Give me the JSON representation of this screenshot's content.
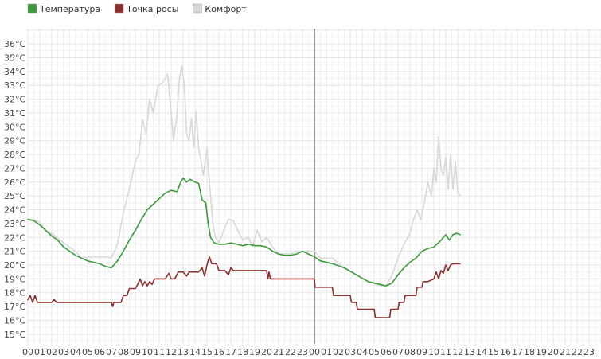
{
  "chart_data": {
    "type": "line",
    "legend": {
      "placement": "top-left",
      "items": [
        {
          "label": "Температура",
          "color": "#3a9a3a"
        },
        {
          "label": "Точка росы",
          "color": "#8b2e2e"
        },
        {
          "label": "Комфорт",
          "color": "#d8d8d8"
        }
      ]
    },
    "y_unit": "°C",
    "ylim": [
      14.3,
      37.1
    ],
    "y_ticks": [
      "15°C",
      "16°C",
      "17°C",
      "18°C",
      "19°C",
      "20°C",
      "21°C",
      "22°C",
      "23°C",
      "24°C",
      "25°C",
      "26°C",
      "27°C",
      "28°C",
      "29°C",
      "30°C",
      "31°C",
      "32°C",
      "33°C",
      "34°C",
      "35°C",
      "36°C"
    ],
    "y_tick_values": [
      15,
      16,
      17,
      18,
      19,
      20,
      21,
      22,
      23,
      24,
      25,
      26,
      27,
      28,
      29,
      30,
      31,
      32,
      33,
      34,
      35,
      36
    ],
    "x_unit": "hours",
    "xlim": [
      0,
      48.0
    ],
    "x_ticks": [
      "00",
      "01",
      "02",
      "03",
      "04",
      "05",
      "06",
      "07",
      "08",
      "09",
      "10",
      "11",
      "12",
      "13",
      "14",
      "15",
      "16",
      "17",
      "18",
      "19",
      "20",
      "21",
      "22",
      "23",
      "00",
      "01",
      "02",
      "03",
      "04",
      "05",
      "06",
      "07",
      "08",
      "09",
      "10",
      "11",
      "12",
      "13",
      "14",
      "15",
      "16",
      "17",
      "18",
      "19",
      "20",
      "21",
      "22",
      "23"
    ],
    "day_divider_hour": 24,
    "grid": true,
    "series": [
      {
        "name": "Комфорт",
        "color": "#d8d8d8",
        "points": [
          [
            0,
            23.3
          ],
          [
            0.5,
            23.3
          ],
          [
            1,
            23.1
          ],
          [
            1.5,
            22.5
          ],
          [
            2,
            22.3
          ],
          [
            3,
            21.6
          ],
          [
            4,
            21.0
          ],
          [
            4.5,
            20.5
          ],
          [
            5,
            20.6
          ],
          [
            6,
            20.6
          ],
          [
            6.7,
            20.6
          ],
          [
            7,
            20.5
          ],
          [
            7.5,
            21.5
          ],
          [
            8,
            23.8
          ],
          [
            8.5,
            25.5
          ],
          [
            9,
            27.5
          ],
          [
            9.3,
            28.0
          ],
          [
            9.6,
            30.5
          ],
          [
            9.9,
            29.5
          ],
          [
            10.2,
            32.0
          ],
          [
            10.5,
            31.0
          ],
          [
            10.9,
            33.0
          ],
          [
            11.3,
            33.2
          ],
          [
            11.7,
            33.8
          ],
          [
            12.0,
            31.0
          ],
          [
            12.2,
            29.0
          ],
          [
            12.5,
            31.0
          ],
          [
            12.7,
            33.5
          ],
          [
            12.9,
            34.4
          ],
          [
            13.1,
            33.0
          ],
          [
            13.3,
            29.5
          ],
          [
            13.5,
            29.0
          ],
          [
            13.7,
            30.6
          ],
          [
            13.9,
            28.5
          ],
          [
            14.1,
            31.1
          ],
          [
            14.3,
            28.5
          ],
          [
            14.5,
            27.5
          ],
          [
            14.7,
            26.5
          ],
          [
            15.0,
            28.5
          ],
          [
            15.2,
            26.0
          ],
          [
            15.5,
            23.0
          ],
          [
            15.7,
            22.0
          ],
          [
            16.0,
            21.6
          ],
          [
            16.4,
            22.5
          ],
          [
            16.8,
            23.3
          ],
          [
            17.2,
            23.2
          ],
          [
            17.6,
            22.5
          ],
          [
            18.0,
            21.8
          ],
          [
            18.5,
            22.0
          ],
          [
            18.8,
            21.3
          ],
          [
            19.2,
            22.5
          ],
          [
            19.6,
            21.7
          ],
          [
            20.0,
            22.0
          ],
          [
            20.5,
            21.3
          ],
          [
            21.0,
            20.8
          ],
          [
            22.0,
            20.8
          ],
          [
            22.5,
            21.0
          ],
          [
            23.0,
            21.0
          ],
          [
            24.0,
            21.0
          ],
          [
            24.5,
            20.5
          ],
          [
            25.5,
            20.5
          ],
          [
            26.5,
            19.8
          ],
          [
            27.5,
            19.3
          ],
          [
            28.5,
            18.8
          ],
          [
            29.5,
            18.5
          ],
          [
            30.0,
            18.5
          ],
          [
            30.5,
            19.3
          ],
          [
            31.0,
            20.5
          ],
          [
            31.5,
            21.5
          ],
          [
            32.0,
            22.3
          ],
          [
            32.3,
            23.3
          ],
          [
            32.6,
            24.0
          ],
          [
            32.9,
            23.3
          ],
          [
            33.2,
            24.5
          ],
          [
            33.5,
            26.0
          ],
          [
            33.8,
            25.0
          ],
          [
            34.0,
            27.0
          ],
          [
            34.2,
            26.0
          ],
          [
            34.4,
            29.3
          ],
          [
            34.6,
            27.0
          ],
          [
            34.8,
            26.5
          ],
          [
            35.0,
            27.8
          ],
          [
            35.2,
            25.5
          ],
          [
            35.4,
            28.0
          ],
          [
            35.6,
            25.5
          ],
          [
            35.8,
            27.5
          ],
          [
            36.0,
            25.2
          ],
          [
            36.2,
            25.0
          ]
        ]
      },
      {
        "name": "Температура",
        "color": "#3a9a3a",
        "points": [
          [
            0,
            23.3
          ],
          [
            0.5,
            23.2
          ],
          [
            1,
            22.9
          ],
          [
            1.5,
            22.5
          ],
          [
            2,
            22.1
          ],
          [
            2.5,
            21.8
          ],
          [
            3,
            21.3
          ],
          [
            3.5,
            21.0
          ],
          [
            4,
            20.7
          ],
          [
            4.5,
            20.5
          ],
          [
            5,
            20.3
          ],
          [
            5.5,
            20.2
          ],
          [
            6,
            20.1
          ],
          [
            6.5,
            19.9
          ],
          [
            7,
            19.8
          ],
          [
            7.5,
            20.3
          ],
          [
            8,
            21.0
          ],
          [
            8.5,
            21.8
          ],
          [
            9,
            22.5
          ],
          [
            9.5,
            23.3
          ],
          [
            10,
            24.0
          ],
          [
            10.5,
            24.4
          ],
          [
            11,
            24.8
          ],
          [
            11.5,
            25.2
          ],
          [
            12,
            25.4
          ],
          [
            12.5,
            25.3
          ],
          [
            12.8,
            26.0
          ],
          [
            13.0,
            26.3
          ],
          [
            13.3,
            26.0
          ],
          [
            13.6,
            26.2
          ],
          [
            14.0,
            26.0
          ],
          [
            14.3,
            25.9
          ],
          [
            14.6,
            24.7
          ],
          [
            14.9,
            24.5
          ],
          [
            15.1,
            23.0
          ],
          [
            15.3,
            22.0
          ],
          [
            15.6,
            21.6
          ],
          [
            16.0,
            21.5
          ],
          [
            16.5,
            21.5
          ],
          [
            17.0,
            21.6
          ],
          [
            17.5,
            21.5
          ],
          [
            18.0,
            21.4
          ],
          [
            18.5,
            21.5
          ],
          [
            19.0,
            21.4
          ],
          [
            19.5,
            21.4
          ],
          [
            20.0,
            21.3
          ],
          [
            20.5,
            21.0
          ],
          [
            21.0,
            20.8
          ],
          [
            21.5,
            20.7
          ],
          [
            22.0,
            20.7
          ],
          [
            22.5,
            20.8
          ],
          [
            23.0,
            21.0
          ],
          [
            23.5,
            20.8
          ],
          [
            24.0,
            20.6
          ],
          [
            24.5,
            20.3
          ],
          [
            25.5,
            20.1
          ],
          [
            26.5,
            19.8
          ],
          [
            27.5,
            19.3
          ],
          [
            28.5,
            18.8
          ],
          [
            29.5,
            18.6
          ],
          [
            30.0,
            18.5
          ],
          [
            30.5,
            18.7
          ],
          [
            31.0,
            19.3
          ],
          [
            31.5,
            19.8
          ],
          [
            32.0,
            20.2
          ],
          [
            32.5,
            20.5
          ],
          [
            33.0,
            21.0
          ],
          [
            33.5,
            21.2
          ],
          [
            34.0,
            21.3
          ],
          [
            34.5,
            21.7
          ],
          [
            35.0,
            22.2
          ],
          [
            35.3,
            21.8
          ],
          [
            35.6,
            22.2
          ],
          [
            35.9,
            22.3
          ],
          [
            36.2,
            22.2
          ]
        ]
      },
      {
        "name": "Точка росы",
        "color": "#8b2e2e",
        "points": [
          [
            0,
            17.5
          ],
          [
            0.2,
            17.8
          ],
          [
            0.4,
            17.3
          ],
          [
            0.6,
            17.8
          ],
          [
            0.8,
            17.3
          ],
          [
            1.0,
            17.3
          ],
          [
            2.0,
            17.3
          ],
          [
            2.2,
            17.5
          ],
          [
            2.4,
            17.3
          ],
          [
            4.0,
            17.3
          ],
          [
            6.0,
            17.3
          ],
          [
            7.0,
            17.3
          ],
          [
            7.1,
            17.0
          ],
          [
            7.2,
            17.3
          ],
          [
            7.8,
            17.3
          ],
          [
            8.0,
            17.8
          ],
          [
            8.3,
            17.8
          ],
          [
            8.5,
            18.3
          ],
          [
            9.0,
            18.3
          ],
          [
            9.2,
            18.6
          ],
          [
            9.4,
            19.0
          ],
          [
            9.6,
            18.5
          ],
          [
            9.8,
            18.8
          ],
          [
            10.0,
            18.5
          ],
          [
            10.2,
            18.8
          ],
          [
            10.4,
            18.6
          ],
          [
            10.6,
            19.0
          ],
          [
            11.0,
            19.0
          ],
          [
            11.5,
            19.0
          ],
          [
            11.8,
            19.4
          ],
          [
            12.0,
            19.0
          ],
          [
            12.3,
            19.0
          ],
          [
            12.6,
            19.5
          ],
          [
            13.0,
            19.5
          ],
          [
            13.3,
            19.2
          ],
          [
            13.5,
            19.5
          ],
          [
            14.0,
            19.5
          ],
          [
            14.3,
            19.5
          ],
          [
            14.6,
            19.8
          ],
          [
            14.8,
            19.2
          ],
          [
            15.0,
            20.0
          ],
          [
            15.2,
            20.6
          ],
          [
            15.4,
            20.1
          ],
          [
            15.8,
            20.1
          ],
          [
            16.0,
            19.6
          ],
          [
            16.5,
            19.6
          ],
          [
            16.8,
            19.3
          ],
          [
            17.0,
            19.8
          ],
          [
            17.2,
            19.6
          ],
          [
            17.5,
            19.6
          ],
          [
            18.0,
            19.6
          ],
          [
            19.0,
            19.6
          ],
          [
            20.0,
            19.6
          ],
          [
            20.1,
            19.0
          ],
          [
            20.2,
            19.5
          ],
          [
            20.3,
            19.0
          ],
          [
            21.0,
            19.0
          ],
          [
            22.0,
            19.0
          ],
          [
            23.0,
            19.0
          ],
          [
            24.0,
            19.0
          ],
          [
            24.05,
            18.4
          ],
          [
            25.0,
            18.4
          ],
          [
            25.5,
            18.4
          ],
          [
            25.6,
            17.8
          ],
          [
            26.5,
            17.8
          ],
          [
            27.0,
            17.8
          ],
          [
            27.1,
            17.3
          ],
          [
            27.5,
            17.3
          ],
          [
            27.6,
            16.8
          ],
          [
            28.5,
            16.8
          ],
          [
            29.0,
            16.8
          ],
          [
            29.1,
            16.2
          ],
          [
            30.0,
            16.2
          ],
          [
            30.3,
            16.2
          ],
          [
            30.4,
            16.8
          ],
          [
            31.0,
            16.8
          ],
          [
            31.1,
            17.3
          ],
          [
            31.5,
            17.3
          ],
          [
            31.6,
            17.8
          ],
          [
            32.5,
            17.8
          ],
          [
            32.6,
            18.4
          ],
          [
            33.0,
            18.4
          ],
          [
            33.1,
            18.8
          ],
          [
            33.5,
            18.8
          ],
          [
            34.0,
            19.0
          ],
          [
            34.2,
            19.5
          ],
          [
            34.4,
            19.0
          ],
          [
            34.6,
            19.6
          ],
          [
            34.8,
            19.4
          ],
          [
            35.0,
            20.0
          ],
          [
            35.2,
            19.6
          ],
          [
            35.4,
            20.0
          ],
          [
            35.6,
            20.1
          ],
          [
            36.2,
            20.1
          ]
        ]
      }
    ]
  }
}
